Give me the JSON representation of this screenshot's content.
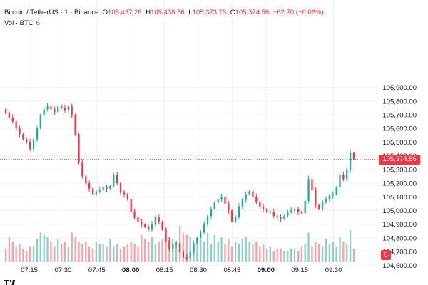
{
  "legend": {
    "symbol": "Bitcoin / TetherUS · 1 · Binance",
    "open_label": "O",
    "open": "105,437.26",
    "high_label": "H",
    "high": "105,438.56",
    "low_label": "L",
    "low": "105,373.75",
    "close_label": "C",
    "close": "105,374.56",
    "change": "−62.70 (−0.06%)",
    "volume_label": "Vol · BTC",
    "volume": "6"
  },
  "last_price_badge": "105,374.56",
  "volume_badge": "6",
  "colors": {
    "up": "#22ab94",
    "down": "#f23645",
    "up_volume": "#90cfc4",
    "down_volume": "#f6a2a9",
    "grid": "#f0f3fa",
    "text": "#131722"
  },
  "chart_data": {
    "type": "candlestick",
    "instrument": "Bitcoin / TetherUS",
    "interval": "1",
    "exchange": "Binance",
    "ylim": [
      104550,
      105920
    ],
    "y_ticks": [
      "105,900.00",
      "105,800.00",
      "105,700.00",
      "105,600.00",
      "105,500.00",
      "105,400.00",
      "105,300.00",
      "105,200.00",
      "105,100.00",
      "105,000.00",
      "104,900.00",
      "104,800.00",
      "104,700.00",
      "104,600.00"
    ],
    "y_tick_values": [
      105900,
      105800,
      105700,
      105600,
      105500,
      105400,
      105300,
      105200,
      105100,
      105000,
      104900,
      104800,
      104700,
      104600
    ],
    "x_tick_labels": [
      "07:15",
      "07:30",
      "07:45",
      "08:00",
      "08:15",
      "08:30",
      "08:45",
      "09:00",
      "09:15",
      "09:30"
    ],
    "x_tick_minutes": [
      15,
      30,
      45,
      60,
      75,
      90,
      105,
      120,
      135,
      150
    ],
    "x_tick_bold": [
      false,
      false,
      false,
      true,
      false,
      false,
      false,
      true,
      false,
      false
    ],
    "last_price": 105374.56,
    "close_series": [
      105710,
      105680,
      105650,
      105600,
      105560,
      105520,
      105500,
      105450,
      105520,
      105600,
      105700,
      105740,
      105760,
      105740,
      105720,
      105760,
      105750,
      105730,
      105760,
      105700,
      105550,
      105350,
      105250,
      105200,
      105160,
      105120,
      105140,
      105150,
      105170,
      105160,
      105180,
      105260,
      105200,
      105130,
      105120,
      105080,
      104990,
      104950,
      104920,
      104900,
      104880,
      104860,
      104900,
      104950,
      104920,
      104860,
      104780,
      104720,
      104750,
      104760,
      104700,
      104660,
      104650,
      104700,
      104760,
      104800,
      104840,
      104900,
      104960,
      105010,
      105060,
      105080,
      105100,
      105050,
      105000,
      104920,
      104950,
      105030,
      105080,
      105120,
      105140,
      105100,
      105060,
      105030,
      105010,
      104990,
      104990,
      104960,
      104950,
      104940,
      104960,
      104990,
      105000,
      105010,
      104990,
      104980,
      105070,
      105230,
      105150,
      105040,
      105010,
      105060,
      105080,
      105110,
      105120,
      105170,
      105260,
      105230,
      105300,
      105420,
      105374.56
    ],
    "volume_series": [
      6,
      11,
      9,
      7,
      8,
      6,
      5,
      7,
      7,
      10,
      13,
      12,
      11,
      9,
      7,
      10,
      8,
      9,
      7,
      13,
      11,
      9,
      8,
      9,
      7,
      6,
      9,
      8,
      8,
      7,
      10,
      7,
      8,
      6,
      7,
      8,
      9,
      8,
      7,
      12,
      10,
      9,
      11,
      8,
      9,
      10,
      12,
      11,
      10,
      9,
      16,
      13,
      12,
      11,
      7,
      11,
      10,
      9,
      13,
      8,
      12,
      9,
      11,
      8,
      10,
      7,
      9,
      8,
      10,
      11,
      9,
      8,
      9,
      7,
      8,
      6,
      7,
      5,
      6,
      6,
      5,
      5,
      6,
      6,
      5,
      7,
      8,
      13,
      7,
      9,
      8,
      7,
      10,
      8,
      9,
      7,
      11,
      9,
      8,
      14,
      6
    ]
  }
}
